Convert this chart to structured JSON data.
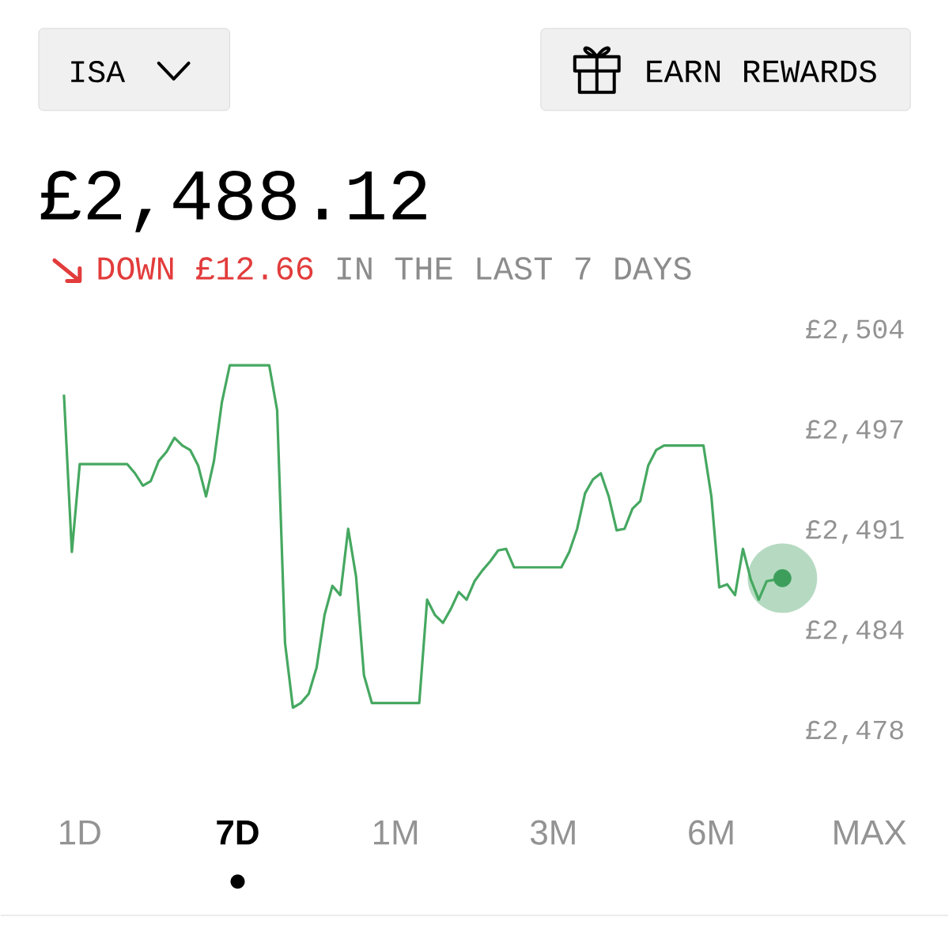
{
  "chart_data": {
    "type": "line",
    "title": "£2,488.12",
    "annotations": [
      "ISA",
      "EARN REWARDS",
      "DOWN £12.66",
      "IN THE LAST 7 DAYS",
      "1D",
      "7D",
      "1M",
      "3M",
      "6M",
      "MAX"
    ],
    "categories": [
      null,
      null,
      null,
      null,
      null,
      null,
      null,
      null,
      null,
      null,
      null,
      null,
      null,
      null,
      null,
      null,
      null,
      null,
      null,
      null,
      null,
      null,
      null,
      null,
      null,
      null,
      null,
      null,
      null,
      null,
      null,
      null,
      null,
      null,
      null,
      null,
      null,
      null,
      null,
      null,
      null,
      null,
      null,
      null,
      null,
      null,
      null,
      null,
      null,
      null,
      null,
      null,
      null,
      null,
      null,
      null,
      null,
      null,
      null,
      null,
      null,
      null,
      null,
      null,
      null,
      null,
      null,
      null,
      null,
      null,
      null,
      null,
      null,
      null,
      null,
      null,
      null,
      null,
      null,
      null,
      null,
      null,
      null,
      null,
      null,
      null,
      null,
      null,
      null,
      null,
      null,
      null
    ],
    "ylim": [
      2478,
      2504
    ],
    "yticks": [
      {
        "value": 2478,
        "label": "£2,478"
      },
      {
        "value": 2484.5,
        "label": "£2,484"
      },
      {
        "value": 2491,
        "label": "£2,491"
      },
      {
        "value": 2497.5,
        "label": "£2,497"
      },
      {
        "value": 2504,
        "label": "£2,504"
      }
    ],
    "series": [
      {
        "color": "#46a861",
        "values": [
          2499.9,
          2489.7,
          2495.4,
          2495.4,
          2495.4,
          2495.4,
          2495.4,
          2495.4,
          2495.4,
          2494.8,
          2494.0,
          2494.3,
          2495.6,
          2496.2,
          2497.1,
          2496.6,
          2496.3,
          2495.3,
          2493.3,
          2495.6,
          2499.4,
          2501.8,
          2501.8,
          2501.8,
          2501.8,
          2501.8,
          2501.8,
          2498.9,
          2483.8,
          2479.6,
          2479.9,
          2480.5,
          2482.2,
          2485.6,
          2487.5,
          2486.9,
          2491.2,
          2488.1,
          2481.7,
          2479.9,
          2479.9,
          2479.9,
          2479.9,
          2479.9,
          2479.9,
          2479.9,
          2486.6,
          2485.6,
          2485.1,
          2486.0,
          2487.1,
          2486.6,
          2487.8,
          2488.5,
          2489.1,
          2489.8,
          2489.9,
          2488.7,
          2488.7,
          2488.7,
          2488.7,
          2488.7,
          2488.7,
          2488.7,
          2489.7,
          2491.2,
          2493.5,
          2494.4,
          2494.8,
          2493.3,
          2491.1,
          2491.2,
          2492.5,
          2493.0,
          2495.3,
          2496.3,
          2496.6,
          2496.6,
          2496.6,
          2496.6,
          2496.6,
          2496.6,
          2493.3,
          2487.4,
          2487.6,
          2486.9,
          2489.9,
          2487.9,
          2486.6,
          2487.8,
          2487.9,
          2488.0
        ]
      },
      {
        "type": "scatter",
        "marker": "circle",
        "color": "#3d9e5c",
        "values": [
          null,
          null,
          null,
          null,
          null,
          null,
          null,
          null,
          null,
          null,
          null,
          null,
          null,
          null,
          null,
          null,
          null,
          null,
          null,
          null,
          null,
          null,
          null,
          null,
          null,
          null,
          null,
          null,
          null,
          null,
          null,
          null,
          null,
          null,
          null,
          null,
          null,
          null,
          null,
          null,
          null,
          null,
          null,
          null,
          null,
          null,
          null,
          null,
          null,
          null,
          null,
          null,
          null,
          null,
          null,
          null,
          null,
          null,
          null,
          null,
          null,
          null,
          null,
          null,
          null,
          null,
          null,
          null,
          null,
          null,
          null,
          null,
          null,
          null,
          null,
          null,
          null,
          null,
          null,
          null,
          null,
          null,
          null,
          null,
          null,
          null,
          null,
          null,
          null,
          null,
          null,
          2488.0
        ]
      }
    ]
  }
}
